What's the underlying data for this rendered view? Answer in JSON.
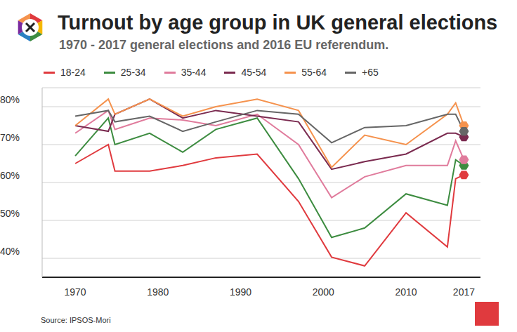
{
  "chart_data": {
    "type": "line",
    "title": "Turnout by age group in UK general elections",
    "subtitle": "1970 - 2017 general elections and 2016 EU referendum.",
    "source": "Source: IPSOS-Mori",
    "x": [
      1970,
      1974,
      1974.8,
      1979,
      1983,
      1987,
      1992,
      1997,
      2001,
      2005,
      2010,
      2015,
      2016,
      2017
    ],
    "xlim": [
      1966,
      2019
    ],
    "xticks": [
      1970,
      1980,
      1990,
      2000,
      2010,
      2017
    ],
    "ylim": [
      35,
      85
    ],
    "yticks": [
      {
        "value": 40,
        "label": "40%"
      },
      {
        "value": 50,
        "label": "50%"
      },
      {
        "value": 60,
        "label": "60%"
      },
      {
        "value": 70,
        "label": "70%"
      },
      {
        "value": 80,
        "label": "80%"
      }
    ],
    "grid": true,
    "legend": "top",
    "marker": "hexagon",
    "series": [
      {
        "name": "18-24",
        "color": "#e03a3e",
        "values": [
          65,
          70,
          63,
          63,
          64.5,
          66.5,
          67.5,
          55,
          40.3,
          38,
          52,
          43,
          61,
          62
        ]
      },
      {
        "name": "25-34",
        "color": "#3d8c40",
        "values": [
          67,
          77,
          70,
          73,
          68,
          74,
          77,
          61,
          45.5,
          48,
          57,
          54,
          66,
          64.5
        ]
      },
      {
        "name": "35-44",
        "color": "#e07b9c",
        "values": [
          73,
          79,
          74,
          77,
          76.5,
          75,
          78,
          70,
          56,
          61.5,
          64.5,
          64.5,
          71,
          66
        ]
      },
      {
        "name": "45-54",
        "color": "#7a2a4f",
        "values": [
          75,
          73.5,
          78,
          82,
          77,
          79,
          77.5,
          76,
          63.5,
          65.5,
          67.5,
          73,
          73,
          72
        ]
      },
      {
        "name": "55-64",
        "color": "#f5924d",
        "values": [
          75,
          82,
          78,
          82,
          77.5,
          80,
          82,
          79,
          64,
          72.5,
          70,
          78,
          81,
          75
        ]
      },
      {
        "name": "+65",
        "color": "#666666",
        "values": [
          77.5,
          79,
          76,
          77.5,
          73.5,
          76,
          79,
          78,
          70.5,
          74.5,
          75,
          78,
          78,
          73.5
        ]
      }
    ]
  }
}
